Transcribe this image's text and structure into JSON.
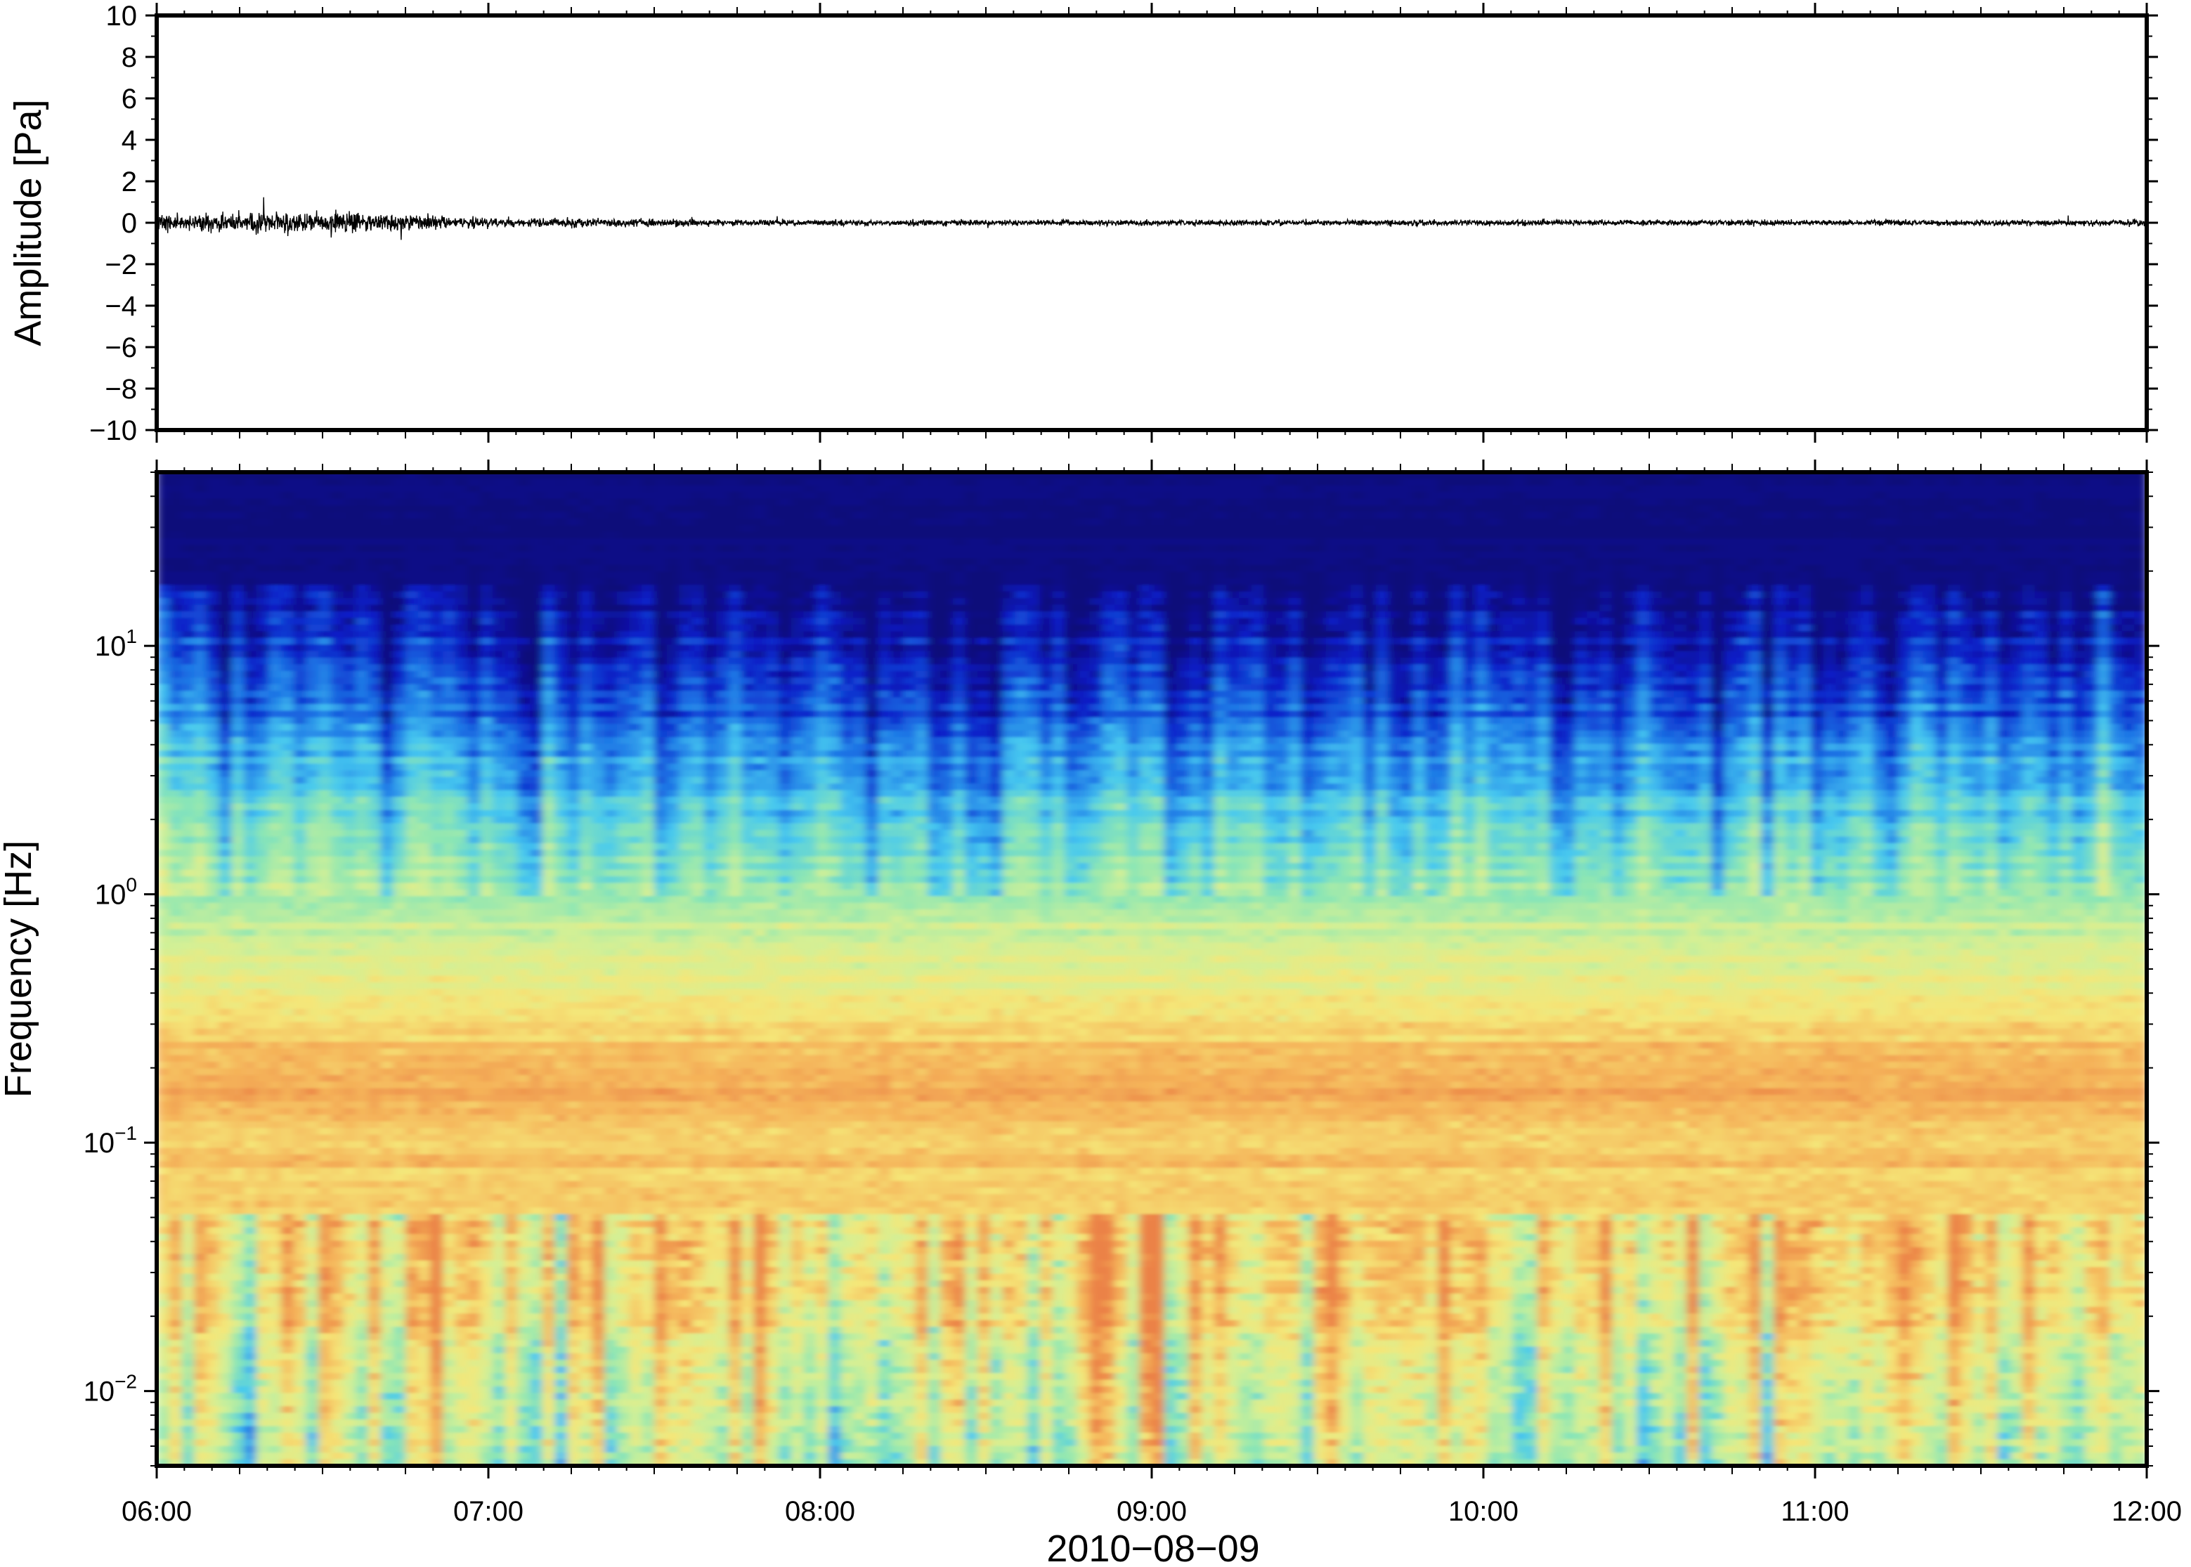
{
  "chart_data": [
    {
      "type": "line",
      "panel": "waveform",
      "ylabel": "Amplitude [Pa]",
      "ylim": [
        -10,
        10
      ],
      "yticks": [
        10,
        8,
        6,
        4,
        2,
        0,
        -2,
        -4,
        -6,
        -8,
        -10
      ],
      "ytick_labels": [
        "10",
        "8",
        "6",
        "4",
        "2",
        "0",
        "−2",
        "−4",
        "−6",
        "−8",
        "−10"
      ],
      "xlim": [
        "06:00",
        "12:00"
      ],
      "series": [
        {
          "color": "#000000",
          "description_envelope_hours": [
            6.0,
            6.5,
            7.0,
            8.0,
            9.0,
            10.0,
            11.0,
            12.0
          ],
          "envelope_pa": [
            0.35,
            0.45,
            0.2,
            0.12,
            0.12,
            0.12,
            0.12,
            0.12
          ]
        }
      ],
      "grid": false
    },
    {
      "type": "heatmap",
      "panel": "spectrogram",
      "ylabel": "Frequency [Hz]",
      "yscale": "log",
      "ylim": [
        0.005,
        50
      ],
      "yticks": [
        {
          "base": "10",
          "exp": "1"
        },
        {
          "base": "10",
          "exp": "0"
        },
        {
          "base": "10",
          "exp": "−1"
        },
        {
          "base": "10",
          "exp": "−2"
        }
      ],
      "ytick_values": [
        10,
        1,
        0.1,
        0.01
      ],
      "xlabel": "2010−08−09",
      "xticks": [
        "06:00",
        "07:00",
        "08:00",
        "09:00",
        "10:00",
        "11:00",
        "12:00"
      ],
      "xtick_hours": [
        6,
        7,
        8,
        9,
        10,
        11,
        12
      ],
      "colormap": [
        "#08087a",
        "#0a1ec8",
        "#1e78e6",
        "#46c8f0",
        "#8ce6b4",
        "#d2f096",
        "#f5e678",
        "#f5b45a",
        "#eb8246"
      ],
      "grid": false
    }
  ]
}
